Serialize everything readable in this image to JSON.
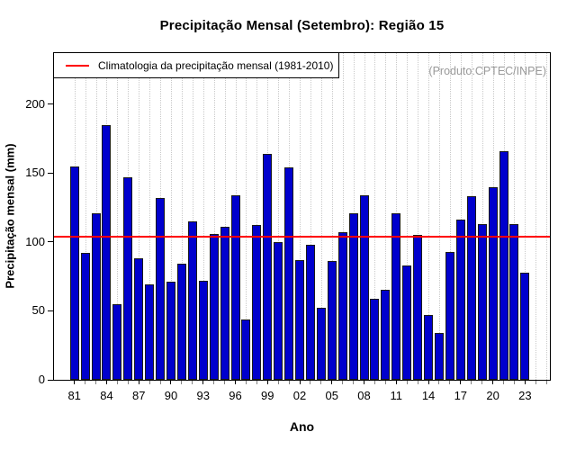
{
  "title": "Precipitação Mensal (Setembro): Região 15",
  "legend": {
    "label": "Climatologia da precipitação mensal (1981-2010)",
    "line_color": "#ff0000"
  },
  "watermark": "(Produto:CPTEC/INPE)",
  "chart_data": {
    "type": "bar",
    "title": "Precipitação Mensal (Setembro): Região 15",
    "xlabel": "Ano",
    "ylabel": "Precipitação mensal (mm)",
    "years": [
      1981,
      1982,
      1983,
      1984,
      1985,
      1986,
      1987,
      1988,
      1989,
      1990,
      1991,
      1992,
      1993,
      1994,
      1995,
      1996,
      1997,
      1998,
      1999,
      2000,
      2001,
      2002,
      2003,
      2004,
      2005,
      2006,
      2007,
      2008,
      2009,
      2010,
      2011,
      2012,
      2013,
      2014,
      2015,
      2016,
      2017,
      2018,
      2019,
      2020,
      2021,
      2022,
      2023
    ],
    "values": [
      155,
      92,
      121,
      185,
      55,
      147,
      88,
      69,
      132,
      71,
      84,
      115,
      72,
      106,
      111,
      134,
      44,
      112,
      164,
      100,
      154,
      87,
      98,
      52,
      86,
      107,
      121,
      134,
      59,
      65,
      121,
      83,
      105,
      47,
      34,
      93,
      116,
      133,
      113,
      140,
      166,
      113,
      78
    ],
    "x_tick_labels": [
      "81",
      "84",
      "87",
      "90",
      "93",
      "96",
      "99",
      "02",
      "05",
      "08",
      "11",
      "14",
      "17",
      "20",
      "23"
    ],
    "x_tick_step": 3,
    "y_ticks": [
      0,
      50,
      100,
      150,
      200
    ],
    "ylim": [
      0,
      237
    ],
    "climatology_value": 104,
    "legend_label": "Climatologia da precipitação mensal (1981-2010)",
    "legend_position": "top-left",
    "grid": "vertical-dotted",
    "bar_color": "#0000cd",
    "bar_border_color": "#1a1a1a",
    "climatology_color": "#ff0000",
    "grid_color": "#c9c9c9"
  }
}
